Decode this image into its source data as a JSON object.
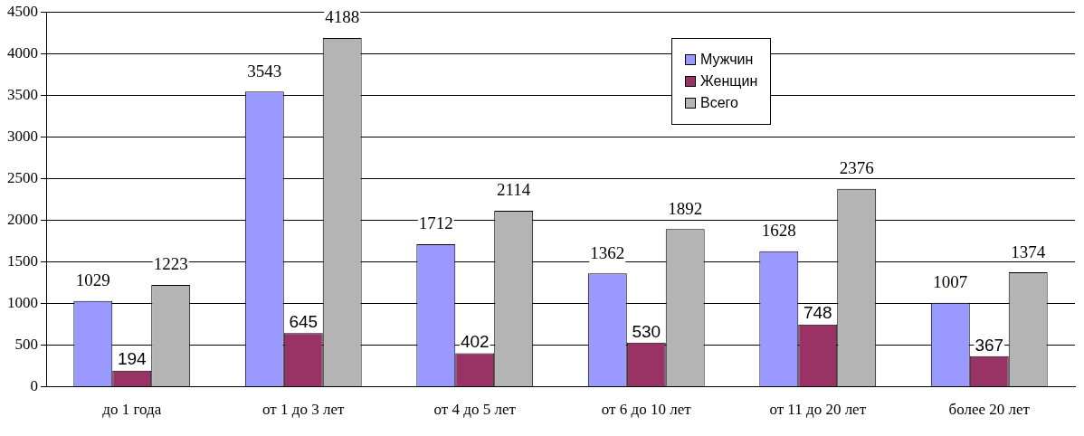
{
  "chart_data": {
    "type": "bar",
    "categories": [
      "до 1 года",
      "от 1 до 3 лет",
      "от 4 до 5 лет",
      "от 6 до 10 лет",
      "от 11 до 20 лет",
      "более 20 лет"
    ],
    "series": [
      {
        "name": "Мужчин",
        "color": "#9999ff",
        "values": [
          1029,
          3543,
          1712,
          1362,
          1628,
          1007
        ]
      },
      {
        "name": "Женщин",
        "color": "#993366",
        "values": [
          194,
          645,
          402,
          530,
          748,
          367
        ]
      },
      {
        "name": "Всего",
        "color": "#b4b4b4",
        "values": [
          1223,
          4188,
          2114,
          1892,
          2376,
          1374
        ]
      }
    ],
    "ylim": [
      0,
      4500
    ],
    "yticks": [
      0,
      500,
      1000,
      1500,
      2000,
      2500,
      3000,
      3500,
      4000,
      4500
    ],
    "grid": "y",
    "legend": "top right",
    "data_labels": true
  }
}
